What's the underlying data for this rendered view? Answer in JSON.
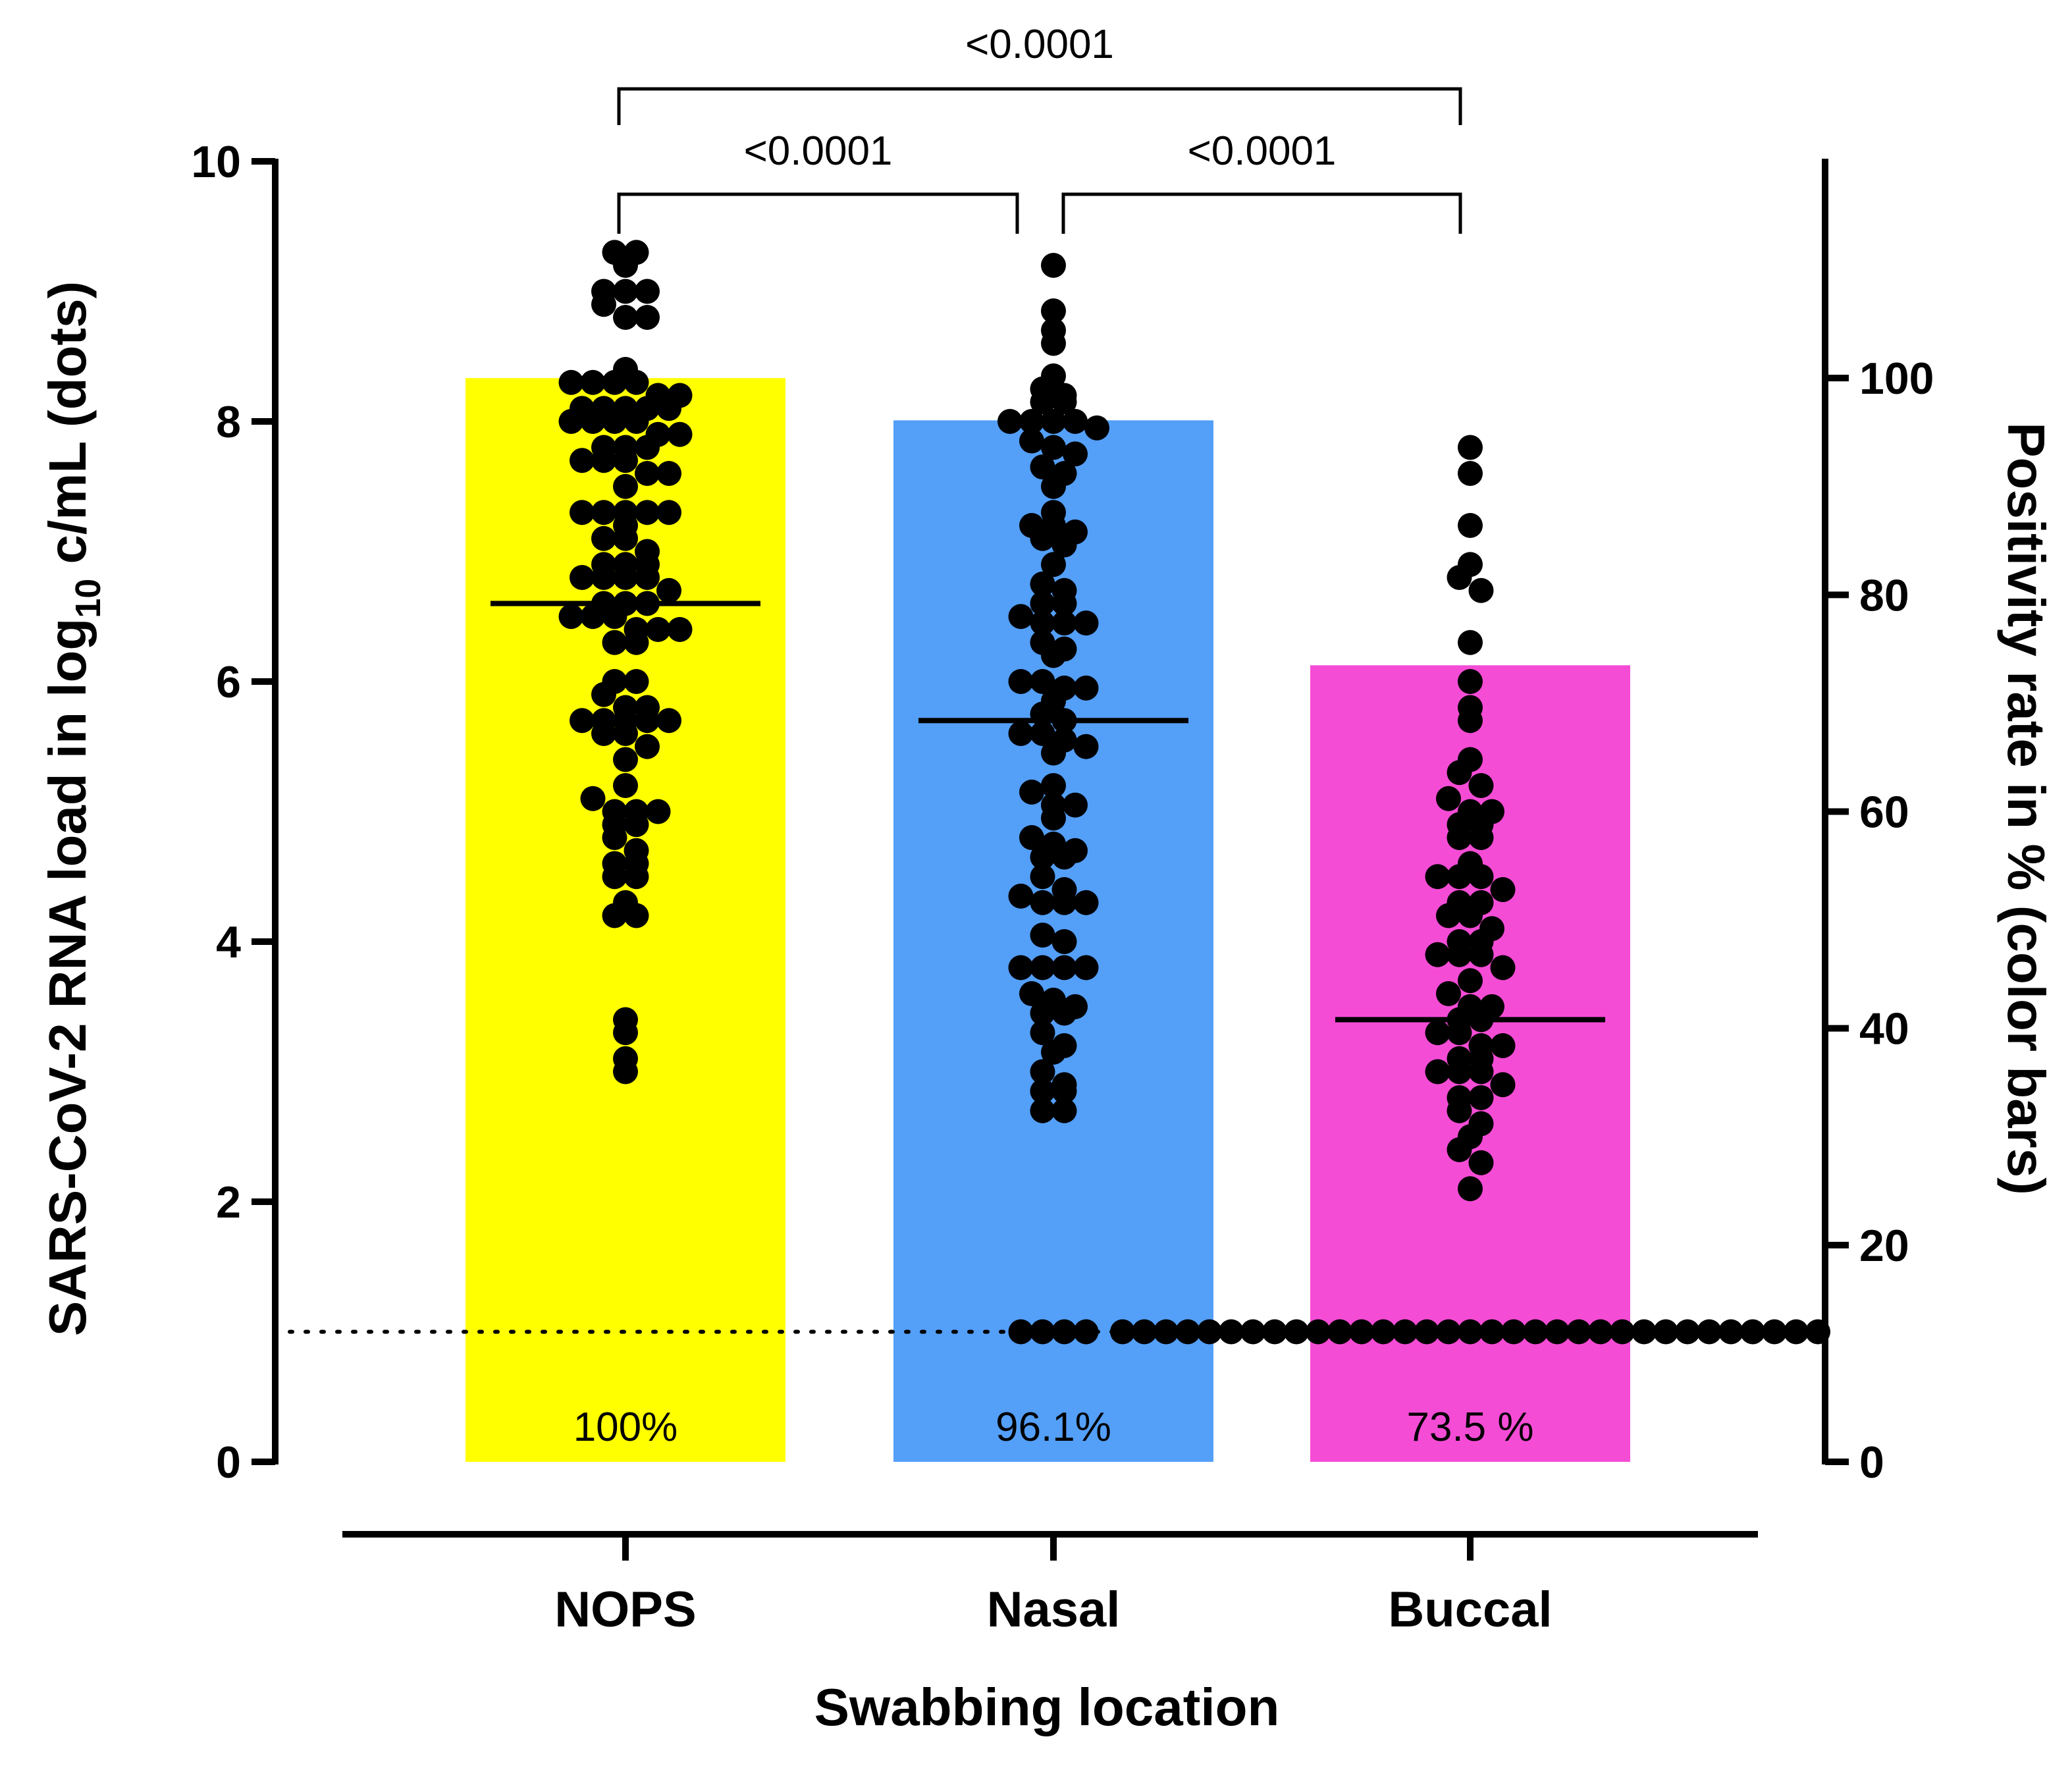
{
  "chart_data": {
    "type": "bar",
    "subtype": "bar with overlaid dot plot (dual y-axis)",
    "categories": [
      "NOPS",
      "Nasal",
      "Buccal"
    ],
    "xlabel": "Swabbing location",
    "ylabel_left": {
      "pre": "SARS-CoV-2 RNA load in log",
      "sub": "10",
      "post": " c/mL (dots)"
    },
    "ylabel_right": "Positivity rate in % (color bars)",
    "ylim_left": [
      0,
      10
    ],
    "yticks_left": [
      "0",
      "2",
      "4",
      "6",
      "8",
      "10"
    ],
    "ylim_right": [
      0,
      120
    ],
    "yticks_right": [
      "0",
      "20",
      "40",
      "60",
      "80",
      "100"
    ],
    "detection_limit_log10": 1,
    "colors": {
      "NOPS": "#ffff00",
      "Nasal": "#549ff8",
      "Buccal": "#f54cd6",
      "dots": "#000000",
      "axis": "#000000"
    },
    "bars": [
      {
        "category": "NOPS",
        "positivity_pct": 100,
        "label": "100%"
      },
      {
        "category": "Nasal",
        "positivity_pct": 96.1,
        "label": "96.1%"
      },
      {
        "category": "Buccal",
        "positivity_pct": 73.5,
        "label": "73.5  %"
      }
    ],
    "medians_log10": {
      "NOPS": 6.6,
      "Nasal": 5.7,
      "Buccal": 3.4
    },
    "significance": [
      {
        "from": "NOPS",
        "to": "Nasal",
        "label": "<0.0001"
      },
      {
        "from": "Nasal",
        "to": "Buccal",
        "label": "<0.0001"
      },
      {
        "from": "NOPS",
        "to": "Buccal",
        "label": "<0.0001"
      }
    ],
    "series": [
      {
        "name": "NOPS",
        "values_log10": [
          9.3,
          9.3,
          9.2,
          9.0,
          9.0,
          9.0,
          8.9,
          8.8,
          8.8,
          8.4,
          8.3,
          8.3,
          8.3,
          8.3,
          8.2,
          8.2,
          8.1,
          8.1,
          8.1,
          8.1,
          8.1,
          8.0,
          8.0,
          8.0,
          8.0,
          7.9,
          7.9,
          7.8,
          7.8,
          7.8,
          7.7,
          7.7,
          7.7,
          7.6,
          7.6,
          7.5,
          7.3,
          7.3,
          7.3,
          7.3,
          7.3,
          7.2,
          7.1,
          7.1,
          7.0,
          6.9,
          6.9,
          6.9,
          6.8,
          6.8,
          6.8,
          6.8,
          6.7,
          6.6,
          6.6,
          6.6,
          6.5,
          6.5,
          6.5,
          6.4,
          6.4,
          6.4,
          6.3,
          6.3,
          6.0,
          6.0,
          5.9,
          5.8,
          5.8,
          5.7,
          5.7,
          5.7,
          5.7,
          5.7,
          5.6,
          5.6,
          5.5,
          5.4,
          5.2,
          5.1,
          5.0,
          5.0,
          5.0,
          4.9,
          4.9,
          4.8,
          4.7,
          4.6,
          4.6,
          4.5,
          4.5,
          4.3,
          4.2,
          4.2,
          3.4,
          3.3,
          3.1,
          3.0
        ]
      },
      {
        "name": "Nasal",
        "values_log10": [
          9.2,
          8.85,
          8.7,
          8.6,
          8.35,
          8.25,
          8.2,
          8.15,
          8.15,
          8.0,
          8.0,
          8.0,
          8.0,
          7.95,
          7.85,
          7.8,
          7.75,
          7.65,
          7.6,
          7.5,
          7.3,
          7.2,
          7.2,
          7.15,
          7.1,
          7.05,
          6.9,
          6.75,
          6.7,
          6.6,
          6.6,
          6.5,
          6.45,
          6.45,
          6.45,
          6.3,
          6.25,
          6.2,
          6.0,
          6.0,
          5.95,
          5.95,
          5.85,
          5.75,
          5.7,
          5.6,
          5.6,
          5.55,
          5.5,
          5.45,
          5.2,
          5.15,
          5.05,
          5.05,
          4.95,
          4.8,
          4.75,
          4.7,
          4.65,
          4.65,
          4.5,
          4.4,
          4.35,
          4.3,
          4.3,
          4.3,
          4.05,
          4.0,
          3.8,
          3.8,
          3.8,
          3.8,
          3.6,
          3.55,
          3.5,
          3.45,
          3.45,
          3.3,
          3.2,
          3.15,
          3.0,
          2.9,
          2.85,
          2.85,
          2.7,
          2.7,
          1.0,
          1.0,
          1.0,
          1.0
        ]
      },
      {
        "name": "Buccal",
        "values_log10": [
          7.8,
          7.6,
          7.2,
          6.9,
          6.8,
          6.7,
          6.3,
          6.0,
          5.8,
          5.7,
          5.4,
          5.3,
          5.2,
          5.1,
          5.0,
          5.0,
          4.9,
          4.9,
          4.8,
          4.8,
          4.6,
          4.5,
          4.5,
          4.5,
          4.4,
          4.3,
          4.3,
          4.2,
          4.2,
          4.1,
          4.0,
          4.0,
          3.9,
          3.9,
          3.9,
          3.8,
          3.7,
          3.6,
          3.5,
          3.5,
          3.4,
          3.4,
          3.3,
          3.3,
          3.2,
          3.2,
          3.1,
          3.1,
          3.0,
          3.0,
          3.0,
          2.9,
          2.8,
          2.8,
          2.7,
          2.6,
          2.5,
          2.4,
          2.3,
          2.1,
          1.0,
          1.0,
          1.0,
          1.0,
          1.0,
          1.0,
          1.0,
          1.0,
          1.0,
          1.0,
          1.0,
          1.0,
          1.0,
          1.0,
          1.0,
          1.0,
          1.0,
          1.0,
          1.0,
          1.0,
          1.0,
          1.0,
          1.0,
          1.0,
          1.0,
          1.0,
          1.0,
          1.0,
          1.0,
          1.0,
          1.0,
          1.0,
          1.0
        ]
      }
    ]
  }
}
